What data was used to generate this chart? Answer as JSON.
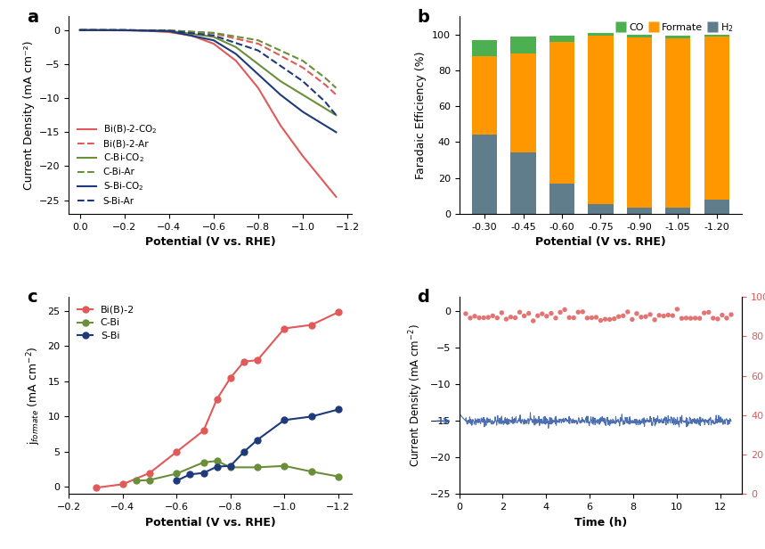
{
  "panel_a": {
    "title": "a",
    "xlabel": "Potential (V vs. RHE)",
    "ylabel": "Current Density (mA cm⁻²)",
    "xlim": [
      0.0,
      -1.2
    ],
    "ylim": [
      -27,
      2
    ],
    "xticks": [
      0.0,
      -0.2,
      -0.4,
      -0.6,
      -0.8,
      -1.0,
      -1.2
    ],
    "yticks": [
      0,
      -5,
      -10,
      -15,
      -20,
      -25
    ],
    "lines": {
      "Bi(B)-2-CO2": {
        "color": "#e05a5a",
        "linestyle": "solid",
        "x": [
          0.0,
          -0.1,
          -0.2,
          -0.3,
          -0.4,
          -0.5,
          -0.6,
          -0.7,
          -0.8,
          -0.9,
          -1.0,
          -1.1,
          -1.15
        ],
        "y": [
          0.0,
          -0.02,
          -0.05,
          -0.1,
          -0.3,
          -0.8,
          -2.0,
          -4.5,
          -8.5,
          -14.0,
          -18.5,
          -22.5,
          -24.5
        ]
      },
      "Bi(B)-2-Ar": {
        "color": "#e05a5a",
        "linestyle": "dashed",
        "x": [
          0.0,
          -0.2,
          -0.4,
          -0.6,
          -0.8,
          -1.0,
          -1.1,
          -1.15
        ],
        "y": [
          0.0,
          -0.01,
          -0.05,
          -0.5,
          -2.0,
          -5.5,
          -8.0,
          -9.5
        ]
      },
      "C-Bi-CO2": {
        "color": "#6b8e3a",
        "linestyle": "solid",
        "x": [
          0.0,
          -0.2,
          -0.4,
          -0.6,
          -0.7,
          -0.8,
          -0.9,
          -1.0,
          -1.1,
          -1.15
        ],
        "y": [
          0.0,
          -0.01,
          -0.1,
          -1.0,
          -2.5,
          -5.0,
          -7.5,
          -9.5,
          -11.5,
          -12.5
        ]
      },
      "C-Bi-Ar": {
        "color": "#6b8e3a",
        "linestyle": "dashed",
        "x": [
          0.0,
          -0.2,
          -0.4,
          -0.6,
          -0.8,
          -1.0,
          -1.1,
          -1.15
        ],
        "y": [
          0.0,
          -0.01,
          -0.05,
          -0.4,
          -1.5,
          -4.5,
          -7.0,
          -8.5
        ]
      },
      "S-Bi-CO2": {
        "color": "#1f3a7a",
        "linestyle": "solid",
        "x": [
          0.0,
          -0.2,
          -0.4,
          -0.6,
          -0.7,
          -0.8,
          -0.9,
          -1.0,
          -1.1,
          -1.15
        ],
        "y": [
          0.0,
          -0.02,
          -0.15,
          -1.5,
          -3.5,
          -6.5,
          -9.5,
          -12.0,
          -14.0,
          -15.0
        ]
      },
      "S-Bi-Ar": {
        "color": "#1f3a7a",
        "linestyle": "dashed",
        "x": [
          0.0,
          -0.2,
          -0.4,
          -0.6,
          -0.8,
          -1.0,
          -1.1,
          -1.15
        ],
        "y": [
          0.0,
          -0.01,
          -0.1,
          -0.8,
          -3.0,
          -7.5,
          -10.5,
          -12.5
        ]
      }
    }
  },
  "panel_b": {
    "title": "b",
    "xlabel": "Potential (V vs. RHE)",
    "ylabel": "Faradaic Efficiency (%)",
    "xlabels": [
      "-0.30",
      "-0.45",
      "-0.60",
      "-0.75",
      "-0.90",
      "-1.05",
      "-1.20"
    ],
    "ylim": [
      0,
      110
    ],
    "yticks": [
      0,
      20,
      40,
      60,
      80,
      100
    ],
    "CO": [
      9.0,
      9.5,
      3.5,
      1.5,
      1.5,
      1.5,
      1.0
    ],
    "Formate": [
      44.0,
      55.5,
      79.0,
      94.0,
      95.0,
      94.5,
      91.0
    ],
    "H2": [
      44.0,
      34.0,
      17.0,
      5.5,
      3.5,
      3.5,
      8.0
    ],
    "colors": {
      "CO": "#4caf50",
      "Formate": "#ff9800",
      "H2": "#607d8b"
    }
  },
  "panel_c": {
    "title": "c",
    "xlabel": "Potential (V vs. RHE)",
    "ylabel": "j$_{formate}$ (mA cm$^{-2}$)",
    "xlim": [
      -0.25,
      -1.25
    ],
    "ylim": [
      -1,
      27
    ],
    "xticks": [
      -0.2,
      -0.4,
      -0.6,
      -0.8,
      -1.0,
      -1.2
    ],
    "yticks": [
      0,
      5,
      10,
      15,
      20,
      25
    ],
    "lines": {
      "Bi(B)-2": {
        "color": "#e05a5a",
        "x": [
          -0.3,
          -0.4,
          -0.5,
          -0.6,
          -0.7,
          -0.75,
          -0.8,
          -0.85,
          -0.9,
          -1.0,
          -1.1,
          -1.2
        ],
        "y": [
          -0.1,
          0.4,
          2.0,
          5.0,
          8.0,
          12.5,
          15.5,
          17.8,
          18.0,
          22.5,
          23.0,
          24.8
        ]
      },
      "C-Bi": {
        "color": "#6b8e3a",
        "x": [
          -0.45,
          -0.5,
          -0.6,
          -0.7,
          -0.75,
          -0.8,
          -0.9,
          -1.0,
          -1.1,
          -1.2
        ],
        "y": [
          0.9,
          1.0,
          1.9,
          3.5,
          3.7,
          2.8,
          2.8,
          3.0,
          2.2,
          1.5
        ]
      },
      "S-Bi": {
        "color": "#1f3a7a",
        "x": [
          -0.6,
          -0.65,
          -0.7,
          -0.75,
          -0.8,
          -0.85,
          -0.9,
          -1.0,
          -1.1,
          -1.2
        ],
        "y": [
          0.9,
          1.8,
          2.0,
          2.9,
          3.0,
          5.0,
          6.7,
          9.5,
          10.0,
          11.0
        ]
      }
    }
  },
  "panel_d": {
    "title": "d",
    "xlabel": "Time (h)",
    "ylabel_left": "Current Density (mA cm$^{-2}$)",
    "ylabel_right": "FE$_{formate}$ (%)",
    "xlim": [
      0,
      13
    ],
    "ylim_left": [
      -25,
      2
    ],
    "ylim_right": [
      0,
      100
    ],
    "yticks_left": [
      0,
      -5,
      -10,
      -15,
      -20,
      -25
    ],
    "yticks_right": [
      0,
      20,
      40,
      60,
      80,
      100
    ],
    "xticks": [
      0,
      2,
      4,
      6,
      8,
      10,
      12
    ],
    "current_color": "#3a5ea8",
    "fe_color": "#e05a5a",
    "current_mean": -15.0,
    "fe_mean": 90.0
  }
}
